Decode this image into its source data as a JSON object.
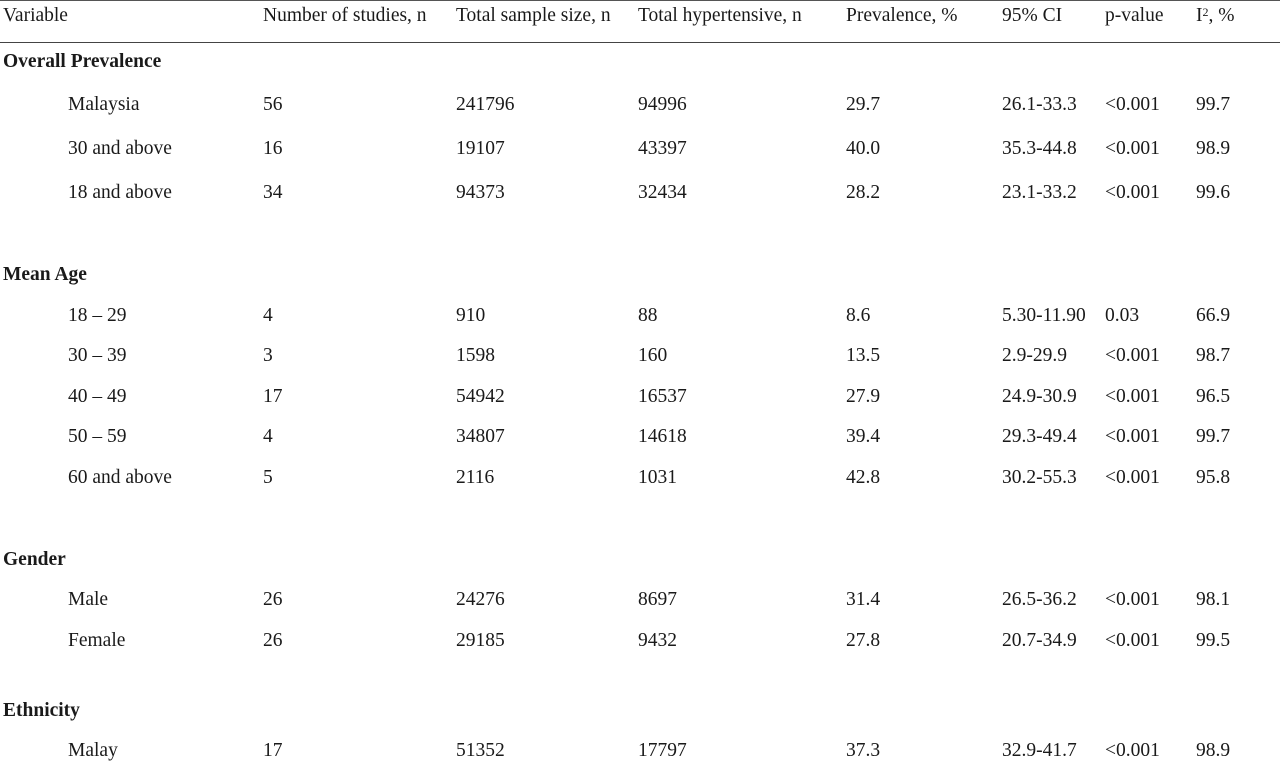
{
  "table": {
    "columns": {
      "variable": "Variable",
      "studies": "Number of studies, n",
      "sample": "Total sample size, n",
      "hypertensive": "Total hypertensive, n",
      "prevalence": "Prevalence, %",
      "ci": "95% CI",
      "p": "p-value",
      "i2_prefix": "I",
      "i2_sup": "2",
      "i2_suffix": ", %"
    },
    "sections": {
      "overall": "Overall Prevalence",
      "age": "Mean Age",
      "gender": "Gender",
      "ethnicity": "Ethnicity"
    },
    "rows": [
      {
        "label": "Malaysia",
        "studies": "56",
        "sample": "241796",
        "hypertensive": "94996",
        "prevalence": "29.7",
        "ci": "26.1-33.3",
        "p": "<0.001",
        "i2": "99.7"
      },
      {
        "label": "30 and above",
        "studies": "16",
        "sample": "19107",
        "hypertensive": "43397",
        "prevalence": "40.0",
        "ci": "35.3-44.8",
        "p": "<0.001",
        "i2": "98.9"
      },
      {
        "label": "18 and above",
        "studies": "34",
        "sample": "94373",
        "hypertensive": "32434",
        "prevalence": "28.2",
        "ci": "23.1-33.2",
        "p": "<0.001",
        "i2": "99.6"
      },
      {
        "label": "18 – 29",
        "studies": "4",
        "sample": "910",
        "hypertensive": "88",
        "prevalence": "8.6",
        "ci": "5.30-11.90",
        "p": "0.03",
        "i2": "66.9"
      },
      {
        "label": "30 – 39",
        "studies": "3",
        "sample": "1598",
        "hypertensive": "160",
        "prevalence": "13.5",
        "ci": "2.9-29.9",
        "p": "<0.001",
        "i2": "98.7"
      },
      {
        "label": "40 – 49",
        "studies": "17",
        "sample": "54942",
        "hypertensive": "16537",
        "prevalence": "27.9",
        "ci": "24.9-30.9",
        "p": "<0.001",
        "i2": "96.5"
      },
      {
        "label": "50 – 59",
        "studies": "4",
        "sample": "34807",
        "hypertensive": "14618",
        "prevalence": "39.4",
        "ci": "29.3-49.4",
        "p": "<0.001",
        "i2": "99.7"
      },
      {
        "label": "60 and above",
        "studies": "5",
        "sample": "2116",
        "hypertensive": "1031",
        "prevalence": "42.8",
        "ci": "30.2-55.3",
        "p": "<0.001",
        "i2": "95.8"
      },
      {
        "label": "Male",
        "studies": "26",
        "sample": "24276",
        "hypertensive": "8697",
        "prevalence": "31.4",
        "ci": "26.5-36.2",
        "p": "<0.001",
        "i2": "98.1"
      },
      {
        "label": "Female",
        "studies": "26",
        "sample": "29185",
        "hypertensive": "9432",
        "prevalence": "27.8",
        "ci": "20.7-34.9",
        "p": "<0.001",
        "i2": "99.5"
      },
      {
        "label": "Malay",
        "studies": "17",
        "sample": "51352",
        "hypertensive": "17797",
        "prevalence": "37.3",
        "ci": "32.9-41.7",
        "p": "<0.001",
        "i2": "98.9"
      }
    ]
  }
}
